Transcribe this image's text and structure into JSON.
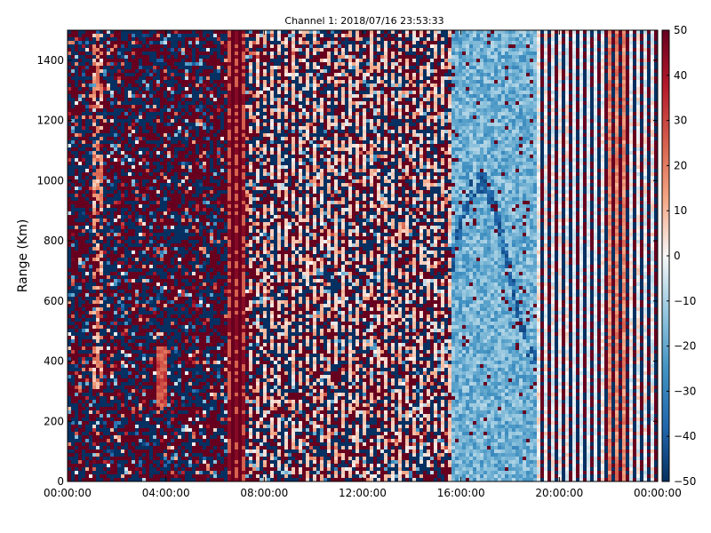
{
  "chart_data": {
    "type": "heatmap",
    "title": "Channel 1: 2018/07/16 23:53:33",
    "xlabel": "",
    "ylabel": "Range (Km)",
    "xlim": [
      "00:00:00",
      "24:00:00"
    ],
    "ylim": [
      0,
      1500
    ],
    "x_ticks": [
      "00:00:00",
      "04:00:00",
      "08:00:00",
      "12:00:00",
      "16:00:00",
      "20:00:00",
      "00:00:00"
    ],
    "y_ticks": [
      0,
      200,
      400,
      600,
      800,
      1000,
      1200,
      1400
    ],
    "colorbar": {
      "range": [
        -50,
        50
      ],
      "ticks": [
        50,
        40,
        30,
        20,
        10,
        0,
        -10,
        -20,
        -30,
        -40,
        -50
      ],
      "colormap": "diverging red-white-blue",
      "colors": {
        "high": "#67001f",
        "mid": "#f7f7f7",
        "low": "#053061"
      }
    },
    "regions": [
      {
        "time_range": [
          "00:00:00",
          "06:30:00"
        ],
        "description": "noisy mixed -50/+50"
      },
      {
        "time_range": [
          "06:30:00",
          "07:00:00"
        ],
        "description": "strong positive"
      },
      {
        "time_range": [
          "07:00:00",
          "15:30:00"
        ],
        "description": "noisy striped"
      },
      {
        "time_range": [
          "15:30:00",
          "19:00:00"
        ],
        "description": "weak negative (-10 to -30)"
      },
      {
        "time_range": [
          "19:00:00",
          "24:00:00"
        ],
        "description": "striped mixed, light positive patches"
      }
    ],
    "grid": false
  }
}
